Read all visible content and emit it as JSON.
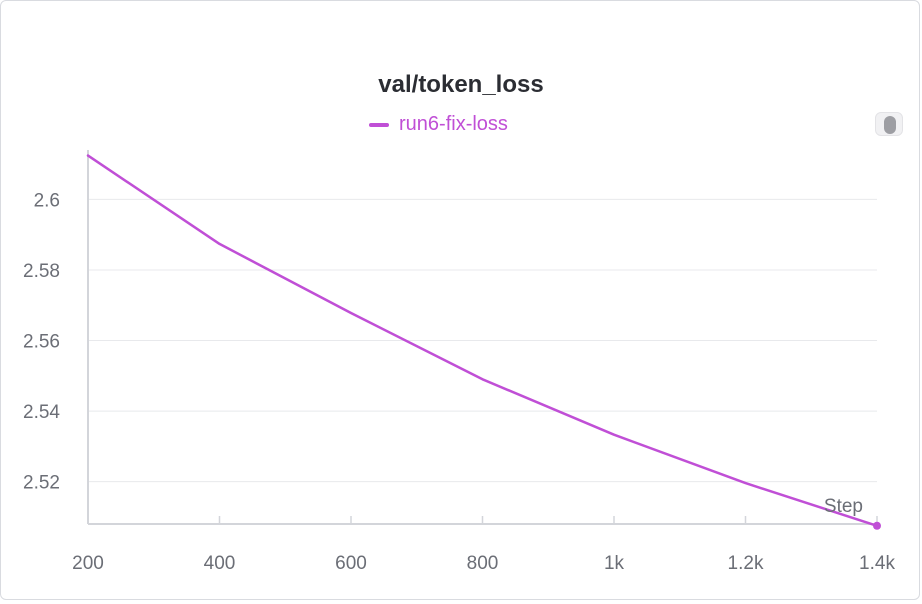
{
  "panel": {
    "colors": {
      "series": "#c04fd6",
      "grid": "#e8e9ec",
      "axis": "#d3d5da",
      "text": "#6b6e76"
    }
  },
  "chart_data": {
    "type": "line",
    "title": "val/token_loss",
    "xlabel": "Step",
    "ylabel": "",
    "xlim": [
      200,
      1400
    ],
    "ylim": [
      2.508,
      2.614
    ],
    "x_ticks": [
      200,
      400,
      600,
      800,
      1000,
      1200,
      1400
    ],
    "x_tick_labels": [
      "200",
      "400",
      "600",
      "800",
      "1k",
      "1.2k",
      "1.4k"
    ],
    "y_ticks": [
      2.52,
      2.54,
      2.56,
      2.58,
      2.6
    ],
    "y_tick_labels": [
      "2.52",
      "2.54",
      "2.56",
      "2.58",
      "2.6"
    ],
    "legend_position": "top-center",
    "series": [
      {
        "name": "run6-fix-loss",
        "color": "#c04fd6",
        "x": [
          200,
          400,
          600,
          800,
          1000,
          1200,
          1400
        ],
        "values": [
          2.6124,
          2.5874,
          2.5678,
          2.549,
          2.5333,
          2.5196,
          2.5075
        ]
      }
    ]
  }
}
